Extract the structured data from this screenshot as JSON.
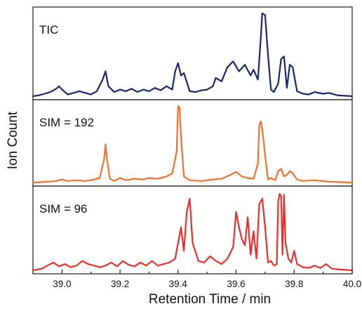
{
  "chart_data": {
    "type": "line",
    "xlabel": "Retention Time / min",
    "ylabel": "Ion Count",
    "xlim": [
      38.9,
      40.0
    ],
    "xticks": [
      "39.0",
      "39.2",
      "39.4",
      "39.6",
      "39.8",
      "40.0"
    ],
    "grid": false,
    "series": [
      {
        "name": "TIC",
        "color": "#1c2470",
        "x": [
          38.9,
          38.92,
          38.94,
          38.96,
          38.98,
          38.99,
          39.0,
          39.02,
          39.04,
          39.06,
          39.08,
          39.1,
          39.12,
          39.14,
          39.15,
          39.16,
          39.18,
          39.2,
          39.22,
          39.24,
          39.26,
          39.28,
          39.3,
          39.32,
          39.34,
          39.36,
          39.38,
          39.39,
          39.4,
          39.41,
          39.42,
          39.44,
          39.46,
          39.48,
          39.5,
          39.52,
          39.53,
          39.55,
          39.57,
          39.59,
          39.61,
          39.63,
          39.65,
          39.66,
          39.675,
          39.685,
          39.69,
          39.7,
          39.71,
          39.72,
          39.73,
          39.745,
          39.755,
          39.765,
          39.775,
          39.785,
          39.795,
          39.81,
          39.83,
          39.85,
          39.87,
          39.9,
          39.92,
          39.95,
          40.0
        ],
        "y": [
          0.0,
          0.01,
          0.03,
          0.05,
          0.09,
          0.12,
          0.08,
          0.02,
          0.04,
          0.06,
          0.04,
          0.02,
          0.06,
          0.2,
          0.3,
          0.12,
          0.05,
          0.08,
          0.06,
          0.09,
          0.05,
          0.08,
          0.06,
          0.1,
          0.07,
          0.12,
          0.08,
          0.3,
          0.4,
          0.25,
          0.28,
          0.06,
          0.05,
          0.07,
          0.08,
          0.12,
          0.22,
          0.18,
          0.35,
          0.42,
          0.3,
          0.38,
          0.25,
          0.32,
          0.2,
          0.7,
          1.0,
          0.98,
          0.5,
          0.08,
          0.05,
          0.15,
          0.45,
          0.48,
          0.1,
          0.38,
          0.35,
          0.06,
          0.03,
          0.02,
          0.05,
          0.03,
          0.04,
          0.01,
          0.0
        ]
      },
      {
        "name": "SIM = 192",
        "color": "#f07030",
        "x": [
          38.9,
          38.95,
          38.98,
          39.0,
          39.02,
          39.05,
          39.08,
          39.1,
          39.13,
          39.145,
          39.15,
          39.155,
          39.165,
          39.18,
          39.2,
          39.22,
          39.25,
          39.28,
          39.3,
          39.33,
          39.36,
          39.38,
          39.395,
          39.4,
          39.405,
          39.41,
          39.42,
          39.44,
          39.48,
          39.52,
          39.55,
          39.58,
          39.6,
          39.62,
          39.64,
          39.66,
          39.675,
          39.68,
          39.685,
          39.69,
          39.7,
          39.71,
          39.72,
          39.735,
          39.745,
          39.755,
          39.765,
          39.775,
          39.785,
          39.795,
          39.81,
          39.83,
          39.87,
          39.92,
          40.0
        ],
        "y": [
          0.0,
          0.01,
          0.02,
          0.04,
          0.02,
          0.03,
          0.02,
          0.03,
          0.06,
          0.3,
          0.5,
          0.3,
          0.05,
          0.02,
          0.06,
          0.03,
          0.05,
          0.04,
          0.06,
          0.05,
          0.08,
          0.12,
          0.4,
          1.0,
          0.98,
          0.6,
          0.08,
          0.03,
          0.02,
          0.04,
          0.05,
          0.1,
          0.14,
          0.08,
          0.06,
          0.05,
          0.25,
          0.75,
          0.8,
          0.7,
          0.35,
          0.04,
          0.06,
          0.03,
          0.15,
          0.18,
          0.08,
          0.1,
          0.15,
          0.12,
          0.04,
          0.02,
          0.03,
          0.01,
          0.0
        ]
      },
      {
        "name": "SIM = 96",
        "color": "#e8302a",
        "x": [
          38.9,
          38.93,
          38.95,
          38.97,
          38.99,
          39.01,
          39.03,
          39.05,
          39.07,
          39.09,
          39.11,
          39.13,
          39.15,
          39.17,
          39.19,
          39.21,
          39.23,
          39.25,
          39.27,
          39.29,
          39.31,
          39.33,
          39.35,
          39.37,
          39.39,
          39.4,
          39.41,
          39.42,
          39.43,
          39.44,
          39.45,
          39.47,
          39.49,
          39.51,
          39.53,
          39.55,
          39.57,
          39.59,
          39.6,
          39.61,
          39.62,
          39.63,
          39.64,
          39.65,
          39.66,
          39.67,
          39.68,
          39.69,
          39.7,
          39.71,
          39.72,
          39.73,
          39.74,
          39.745,
          39.75,
          39.755,
          39.76,
          39.765,
          39.77,
          39.78,
          39.79,
          39.8,
          39.81,
          39.83,
          39.85,
          39.87,
          39.89,
          39.91,
          39.93,
          39.96,
          40.0
        ],
        "y": [
          0.0,
          0.02,
          0.06,
          0.1,
          0.05,
          0.08,
          0.04,
          0.06,
          0.12,
          0.08,
          0.06,
          0.04,
          0.06,
          0.1,
          0.05,
          0.12,
          0.07,
          0.05,
          0.1,
          0.06,
          0.12,
          0.06,
          0.08,
          0.1,
          0.15,
          0.35,
          0.55,
          0.25,
          0.75,
          0.92,
          0.35,
          0.12,
          0.1,
          0.18,
          0.12,
          0.08,
          0.15,
          0.3,
          0.75,
          0.55,
          0.4,
          0.32,
          0.68,
          0.2,
          0.5,
          0.15,
          0.85,
          0.92,
          0.55,
          0.1,
          0.12,
          0.06,
          0.08,
          0.88,
          0.98,
          0.95,
          0.2,
          0.97,
          0.35,
          0.15,
          0.1,
          0.25,
          0.08,
          0.04,
          0.03,
          0.06,
          0.03,
          0.08,
          0.02,
          0.01,
          0.0
        ]
      }
    ]
  }
}
